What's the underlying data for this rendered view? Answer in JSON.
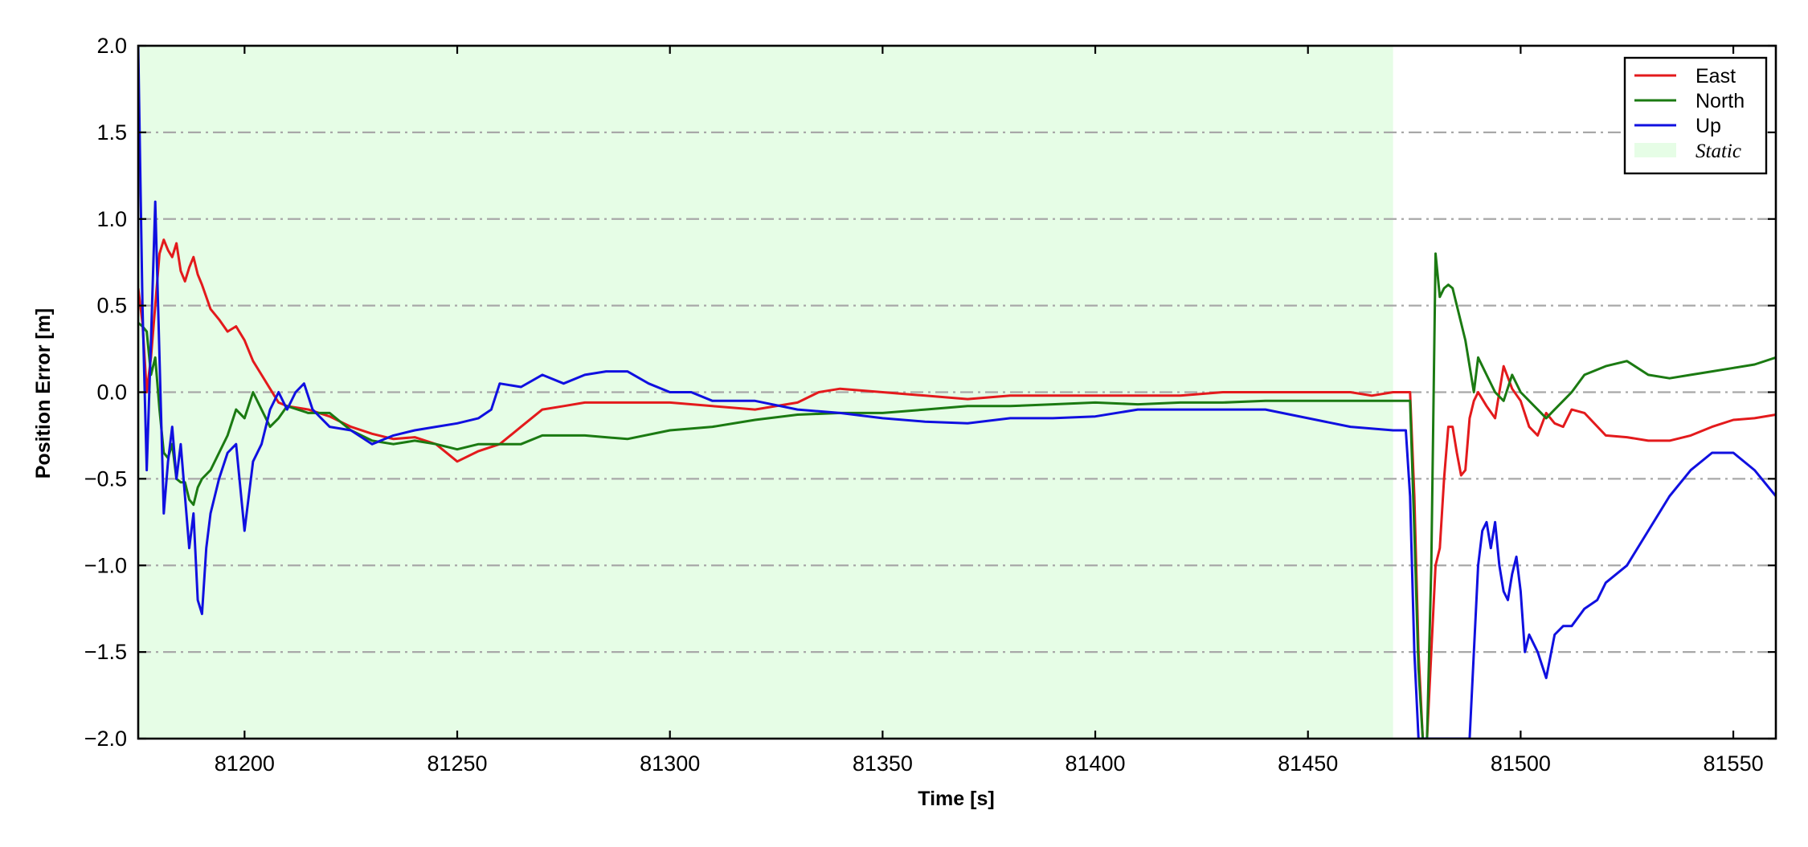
{
  "chart_data": {
    "type": "line",
    "title": "",
    "xlabel": "Time [s]",
    "ylabel": "Position Error [m]",
    "xlim": [
      81175,
      81560
    ],
    "ylim": [
      -2.0,
      2.0
    ],
    "xticks": [
      81200,
      81250,
      81300,
      81350,
      81400,
      81450,
      81500,
      81550
    ],
    "xtick_labels": [
      "81200",
      "81250",
      "81300",
      "81350",
      "81400",
      "81450",
      "81500",
      "81550"
    ],
    "yticks": [
      -2.0,
      -1.5,
      -1.0,
      -0.5,
      0.0,
      0.5,
      1.0,
      1.5,
      2.0
    ],
    "ytick_labels": [
      "−2.0",
      "−1.5",
      "−1.0",
      "−0.5",
      "0.0",
      "0.5",
      "1.0",
      "1.5",
      "2.0"
    ],
    "grid": "horizontal dash-dot",
    "legend_position": "top-right",
    "shaded_regions": [
      {
        "name": "Static",
        "x_start": 81175,
        "x_end": 81470,
        "color": "#e6fde6"
      }
    ],
    "series": [
      {
        "name": "East",
        "color": "#e31a1c",
        "x": [
          81175,
          81176,
          81177,
          81178,
          81179,
          81180,
          81181,
          81182,
          81183,
          81184,
          81185,
          81186,
          81187,
          81188,
          81189,
          81190,
          81192,
          81194,
          81196,
          81198,
          81200,
          81202,
          81204,
          81206,
          81208,
          81210,
          81215,
          81220,
          81225,
          81230,
          81235,
          81240,
          81245,
          81250,
          81255,
          81260,
          81265,
          81270,
          81275,
          81280,
          81290,
          81300,
          81310,
          81320,
          81330,
          81335,
          81340,
          81350,
          81360,
          81370,
          81380,
          81390,
          81400,
          81410,
          81420,
          81430,
          81440,
          81450,
          81460,
          81465,
          81470,
          81474,
          81475,
          81476,
          81477,
          81478,
          81479,
          81480,
          81481,
          81482,
          81483,
          81484,
          81485,
          81486,
          81487,
          81488,
          81489,
          81490,
          81492,
          81494,
          81496,
          81498,
          81500,
          81502,
          81504,
          81506,
          81508,
          81510,
          81512,
          81515,
          81520,
          81525,
          81530,
          81535,
          81540,
          81545,
          81550,
          81555,
          81560
        ],
        "y": [
          0.6,
          0.4,
          0.0,
          0.2,
          0.5,
          0.8,
          0.88,
          0.82,
          0.78,
          0.86,
          0.7,
          0.64,
          0.72,
          0.78,
          0.68,
          0.62,
          0.48,
          0.42,
          0.35,
          0.38,
          0.3,
          0.18,
          0.1,
          0.02,
          -0.06,
          -0.08,
          -0.1,
          -0.14,
          -0.2,
          -0.24,
          -0.27,
          -0.26,
          -0.3,
          -0.4,
          -0.34,
          -0.3,
          -0.2,
          -0.1,
          -0.08,
          -0.06,
          -0.06,
          -0.06,
          -0.08,
          -0.1,
          -0.06,
          0.0,
          0.02,
          0.0,
          -0.02,
          -0.04,
          -0.02,
          -0.02,
          -0.02,
          -0.02,
          -0.02,
          0.0,
          0.0,
          0.0,
          0.0,
          -0.02,
          0.0,
          0.0,
          -0.6,
          -1.5,
          -2.0,
          -2.0,
          -1.5,
          -1.0,
          -0.9,
          -0.5,
          -0.2,
          -0.2,
          -0.35,
          -0.48,
          -0.45,
          -0.15,
          -0.05,
          0.0,
          -0.08,
          -0.15,
          0.15,
          0.02,
          -0.05,
          -0.2,
          -0.25,
          -0.12,
          -0.18,
          -0.2,
          -0.1,
          -0.12,
          -0.25,
          -0.26,
          -0.28,
          -0.28,
          -0.25,
          -0.2,
          -0.16,
          -0.15,
          -0.13
        ]
      },
      {
        "name": "North",
        "color": "#1b7a12",
        "x": [
          81175,
          81176,
          81177,
          81178,
          81179,
          81180,
          81181,
          81182,
          81183,
          81184,
          81185,
          81186,
          81187,
          81188,
          81189,
          81190,
          81192,
          81194,
          81196,
          81198,
          81200,
          81202,
          81204,
          81206,
          81208,
          81210,
          81215,
          81220,
          81225,
          81230,
          81235,
          81240,
          81245,
          81250,
          81255,
          81260,
          81265,
          81270,
          81275,
          81280,
          81290,
          81300,
          81310,
          81320,
          81330,
          81340,
          81350,
          81360,
          81370,
          81380,
          81390,
          81400,
          81410,
          81420,
          81430,
          81440,
          81450,
          81460,
          81470,
          81474,
          81475,
          81476,
          81477,
          81478,
          81479,
          81480,
          81481,
          81482,
          81483,
          81484,
          81485,
          81486,
          81487,
          81488,
          81489,
          81490,
          81492,
          81494,
          81496,
          81498,
          81500,
          81502,
          81504,
          81506,
          81508,
          81510,
          81512,
          81515,
          81520,
          81525,
          81530,
          81535,
          81540,
          81545,
          81550,
          81555,
          81560
        ],
        "y": [
          0.4,
          0.38,
          0.35,
          0.1,
          0.2,
          -0.1,
          -0.35,
          -0.38,
          -0.3,
          -0.5,
          -0.52,
          -0.52,
          -0.62,
          -0.65,
          -0.55,
          -0.5,
          -0.45,
          -0.35,
          -0.25,
          -0.1,
          -0.15,
          0.0,
          -0.1,
          -0.2,
          -0.15,
          -0.08,
          -0.12,
          -0.12,
          -0.22,
          -0.28,
          -0.3,
          -0.28,
          -0.3,
          -0.33,
          -0.3,
          -0.3,
          -0.3,
          -0.25,
          -0.25,
          -0.25,
          -0.27,
          -0.22,
          -0.2,
          -0.16,
          -0.13,
          -0.12,
          -0.12,
          -0.1,
          -0.08,
          -0.08,
          -0.07,
          -0.06,
          -0.07,
          -0.06,
          -0.06,
          -0.05,
          -0.05,
          -0.05,
          -0.05,
          -0.05,
          -0.8,
          -1.6,
          -2.0,
          -2.0,
          -1.0,
          0.8,
          0.55,
          0.6,
          0.62,
          0.6,
          0.5,
          0.4,
          0.3,
          0.15,
          0.0,
          0.2,
          0.1,
          0.0,
          -0.05,
          0.1,
          0.0,
          -0.05,
          -0.1,
          -0.15,
          -0.1,
          -0.05,
          0.0,
          0.1,
          0.15,
          0.18,
          0.1,
          0.08,
          0.1,
          0.12,
          0.14,
          0.16,
          0.2
        ]
      },
      {
        "name": "Up",
        "color": "#1010e0",
        "x": [
          81175,
          81176,
          81177,
          81178,
          81179,
          81180,
          81181,
          81182,
          81183,
          81184,
          81185,
          81186,
          81187,
          81188,
          81189,
          81190,
          81191,
          81192,
          81193,
          81194,
          81196,
          81198,
          81200,
          81202,
          81204,
          81206,
          81208,
          81210,
          81212,
          81214,
          81216,
          81220,
          81225,
          81230,
          81235,
          81240,
          81245,
          81250,
          81255,
          81258,
          81260,
          81265,
          81270,
          81275,
          81280,
          81285,
          81290,
          81295,
          81300,
          81305,
          81310,
          81320,
          81330,
          81340,
          81350,
          81360,
          81370,
          81380,
          81390,
          81400,
          81410,
          81420,
          81430,
          81440,
          81450,
          81460,
          81470,
          81473,
          81474,
          81475,
          81476,
          81477,
          81478,
          81479,
          81480,
          81481,
          81482,
          81483,
          81484,
          81485,
          81486,
          81487,
          81488,
          81489,
          81490,
          81491,
          81492,
          81493,
          81494,
          81495,
          81496,
          81497,
          81498,
          81499,
          81500,
          81501,
          81502,
          81504,
          81506,
          81508,
          81510,
          81512,
          81515,
          81518,
          81520,
          81525,
          81530,
          81535,
          81540,
          81545,
          81550,
          81555,
          81560
        ],
        "y": [
          2.0,
          0.5,
          -0.45,
          0.3,
          1.1,
          0.2,
          -0.7,
          -0.4,
          -0.2,
          -0.5,
          -0.3,
          -0.6,
          -0.9,
          -0.7,
          -1.2,
          -1.28,
          -0.9,
          -0.7,
          -0.6,
          -0.5,
          -0.35,
          -0.3,
          -0.8,
          -0.4,
          -0.3,
          -0.1,
          0.0,
          -0.1,
          0.0,
          0.05,
          -0.1,
          -0.2,
          -0.22,
          -0.3,
          -0.25,
          -0.22,
          -0.2,
          -0.18,
          -0.15,
          -0.1,
          0.05,
          0.03,
          0.1,
          0.05,
          0.1,
          0.12,
          0.12,
          0.05,
          0.0,
          0.0,
          -0.05,
          -0.05,
          -0.1,
          -0.12,
          -0.15,
          -0.17,
          -0.18,
          -0.15,
          -0.15,
          -0.14,
          -0.1,
          -0.1,
          -0.1,
          -0.1,
          -0.15,
          -0.2,
          -0.22,
          -0.22,
          -0.6,
          -1.5,
          -2.0,
          -2.0,
          -2.0,
          -2.0,
          -2.0,
          -2.0,
          -2.0,
          -2.0,
          -2.0,
          -2.0,
          -2.0,
          -2.0,
          -2.0,
          -1.5,
          -1.0,
          -0.8,
          -0.75,
          -0.9,
          -0.75,
          -1.0,
          -1.15,
          -1.2,
          -1.05,
          -0.95,
          -1.15,
          -1.5,
          -1.4,
          -1.5,
          -1.65,
          -1.4,
          -1.35,
          -1.35,
          -1.25,
          -1.2,
          -1.1,
          -1.0,
          -0.8,
          -0.6,
          -0.45,
          -0.35,
          -0.35,
          -0.45,
          -0.6
        ]
      }
    ]
  }
}
